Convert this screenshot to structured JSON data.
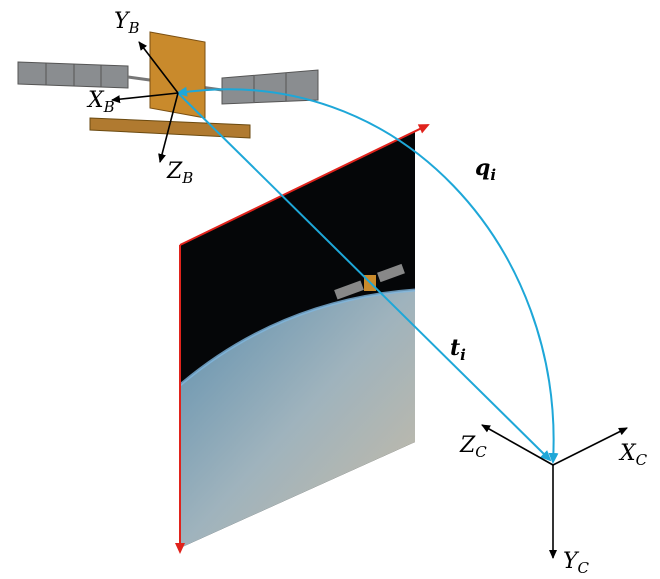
{
  "labels": {
    "yb": {
      "base": "Y",
      "sub": "B"
    },
    "xb": {
      "base": "X",
      "sub": "B"
    },
    "zb": {
      "base": "Z",
      "sub": "B"
    },
    "q": {
      "base": "q",
      "sub": "i"
    },
    "t": {
      "base": "t",
      "sub": "i"
    },
    "zc": {
      "base": "Z",
      "sub": "C"
    },
    "xc": {
      "base": "X",
      "sub": "C"
    },
    "yc": {
      "base": "Y",
      "sub": "C"
    }
  }
}
